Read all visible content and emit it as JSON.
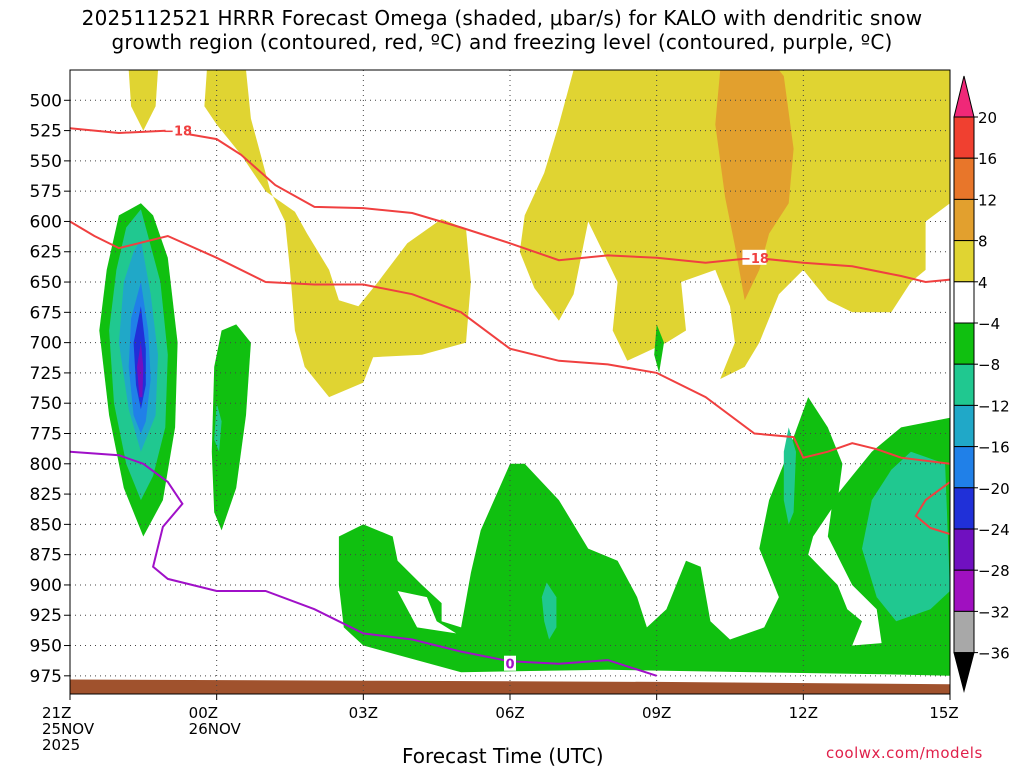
{
  "title_line1": "2025112521 HRRR Forecast Omega (shaded, μbar/s) for KALO with dendritic snow",
  "title_line2": "growth region (contoured, red, ºC) and freezing level (contoured, purple, ºC)",
  "xlabel": "Forecast Time (UTC)",
  "credit": "coolwx.com/models",
  "chart_data": {
    "type": "contour",
    "title": "2025112521 HRRR Forecast Omega (shaded, μbar/s) for KALO with dendritic snow growth region (contoured, red, ºC) and freezing level (contoured, purple, ºC)",
    "xlabel": "Forecast Time (UTC)",
    "x_range_hours": [
      0,
      18
    ],
    "y_range_hpa": [
      475,
      990
    ],
    "y_ticks": [
      500,
      525,
      550,
      575,
      600,
      625,
      650,
      675,
      700,
      725,
      750,
      775,
      800,
      825,
      850,
      875,
      900,
      925,
      950,
      975
    ],
    "x_ticks": [
      {
        "hour": 0,
        "lines": [
          "21Z",
          "25NOV",
          "2025"
        ]
      },
      {
        "hour": 3,
        "lines": [
          "00Z",
          "26NOV"
        ]
      },
      {
        "hour": 6,
        "lines": [
          "03Z"
        ]
      },
      {
        "hour": 9,
        "lines": [
          "06Z"
        ]
      },
      {
        "hour": 12,
        "lines": [
          "09Z"
        ]
      },
      {
        "hour": 15,
        "lines": [
          "12Z"
        ]
      },
      {
        "hour": 18,
        "lines": [
          "15Z"
        ]
      }
    ],
    "colorbar": {
      "labels": [
        "20",
        "16",
        "12",
        "8",
        "4",
        "−4",
        "−8",
        "−12",
        "−16",
        "−20",
        "−24",
        "−28",
        "−32",
        "−36"
      ],
      "colors": [
        "#f02878",
        "#f04030",
        "#e8762a",
        "#e2a02e",
        "#e0d432",
        "#ffffff",
        "#10c010",
        "#20c890",
        "#20a8c8",
        "#2080e8",
        "#2030d8",
        "#7010c0",
        "#a010c0",
        "#a8a8a8",
        "#000000"
      ]
    },
    "shading_colors": {
      "pos4": "#e0d432",
      "pos8": "#e2a02e",
      "neg4": "#10c010",
      "neg8": "#20c890",
      "neg12": "#20a8c8",
      "neg16": "#2080e8",
      "neg20": "#2030d8",
      "neg24": "#7010c0",
      "ground": "#a0522d"
    },
    "contour_colors": {
      "dgz": "#f04040",
      "freezing": "#a010c8"
    },
    "contour_labels": [
      {
        "text": "−18",
        "hour": 2.2,
        "hpa": 525
      },
      {
        "text": "−18",
        "hour": 14.0,
        "hpa": 630
      },
      {
        "text": "0",
        "hour": 9.0,
        "hpa": 965
      }
    ],
    "dgz_upper_-12C": [
      [
        0,
        600
      ],
      [
        0.5,
        612
      ],
      [
        1,
        622
      ],
      [
        2,
        612
      ],
      [
        3,
        630
      ],
      [
        4,
        650
      ],
      [
        5,
        652
      ],
      [
        6,
        652
      ],
      [
        7,
        660
      ],
      [
        8,
        675
      ],
      [
        9,
        705
      ],
      [
        10,
        715
      ],
      [
        11,
        718
      ],
      [
        12,
        725
      ],
      [
        13,
        745
      ],
      [
        14,
        775
      ],
      [
        14.8,
        778
      ],
      [
        15,
        795
      ],
      [
        15.5,
        790
      ],
      [
        16,
        783
      ],
      [
        16.5,
        788
      ],
      [
        17,
        795
      ],
      [
        18,
        800
      ]
    ],
    "dgz_lower_-18C": [
      [
        0,
        523
      ],
      [
        1,
        527
      ],
      [
        2,
        525
      ],
      [
        3,
        532
      ],
      [
        3.5,
        545
      ],
      [
        4.2,
        570
      ],
      [
        5,
        588
      ],
      [
        6,
        589
      ],
      [
        7,
        593
      ],
      [
        8,
        605
      ],
      [
        9,
        618
      ],
      [
        10,
        632
      ],
      [
        11,
        628
      ],
      [
        12,
        630
      ],
      [
        13,
        634
      ],
      [
        14,
        630
      ],
      [
        15,
        634
      ],
      [
        16,
        637
      ],
      [
        17,
        645
      ],
      [
        17.5,
        650
      ],
      [
        18,
        648
      ]
    ],
    "freezing_level_0C": [
      [
        0,
        790
      ],
      [
        1,
        793
      ],
      [
        1.5,
        800
      ],
      [
        2,
        815
      ],
      [
        2.3,
        833
      ],
      [
        1.9,
        852
      ],
      [
        1.7,
        885
      ],
      [
        2,
        895
      ],
      [
        3,
        905
      ],
      [
        4,
        905
      ],
      [
        5,
        920
      ],
      [
        6,
        940
      ],
      [
        7,
        945
      ],
      [
        8,
        955
      ],
      [
        9,
        963
      ],
      [
        10,
        965
      ],
      [
        11,
        962
      ],
      [
        12,
        975
      ]
    ],
    "omega_regions": [
      {
        "level": "pos4",
        "hours_approx": [
          1.2,
          1.8
        ],
        "hpa_approx": [
          485,
          525
        ]
      },
      {
        "level": "pos4",
        "hours_approx": [
          3.0,
          4.7
        ],
        "hpa_approx": [
          485,
          598
        ]
      },
      {
        "level": "pos4",
        "hours_approx": [
          5.0,
          7.0
        ],
        "hpa_approx": [
          595,
          717
        ]
      },
      {
        "level": "pos4",
        "hours_approx": [
          7.0,
          9.5
        ],
        "hpa_approx": [
          590,
          695
        ]
      },
      {
        "level": "pos4",
        "hours_approx": [
          10.0,
          18.0
        ],
        "hpa_approx": [
          485,
          720
        ]
      },
      {
        "level": "pos8",
        "hours_approx": [
          13.2,
          14.8
        ],
        "hpa_approx": [
          485,
          665
        ]
      },
      {
        "level": "neg4",
        "hours_approx": [
          0.6,
          2.2
        ],
        "hpa_approx": [
          580,
          860
        ]
      },
      {
        "level": "neg4",
        "hours_approx": [
          3.0,
          3.7
        ],
        "hpa_approx": [
          685,
          855
        ]
      },
      {
        "level": "neg4",
        "hours_approx": [
          5.5,
          18.0
        ],
        "hpa_approx": [
          775,
          975
        ]
      }
    ],
    "grid": true
  }
}
